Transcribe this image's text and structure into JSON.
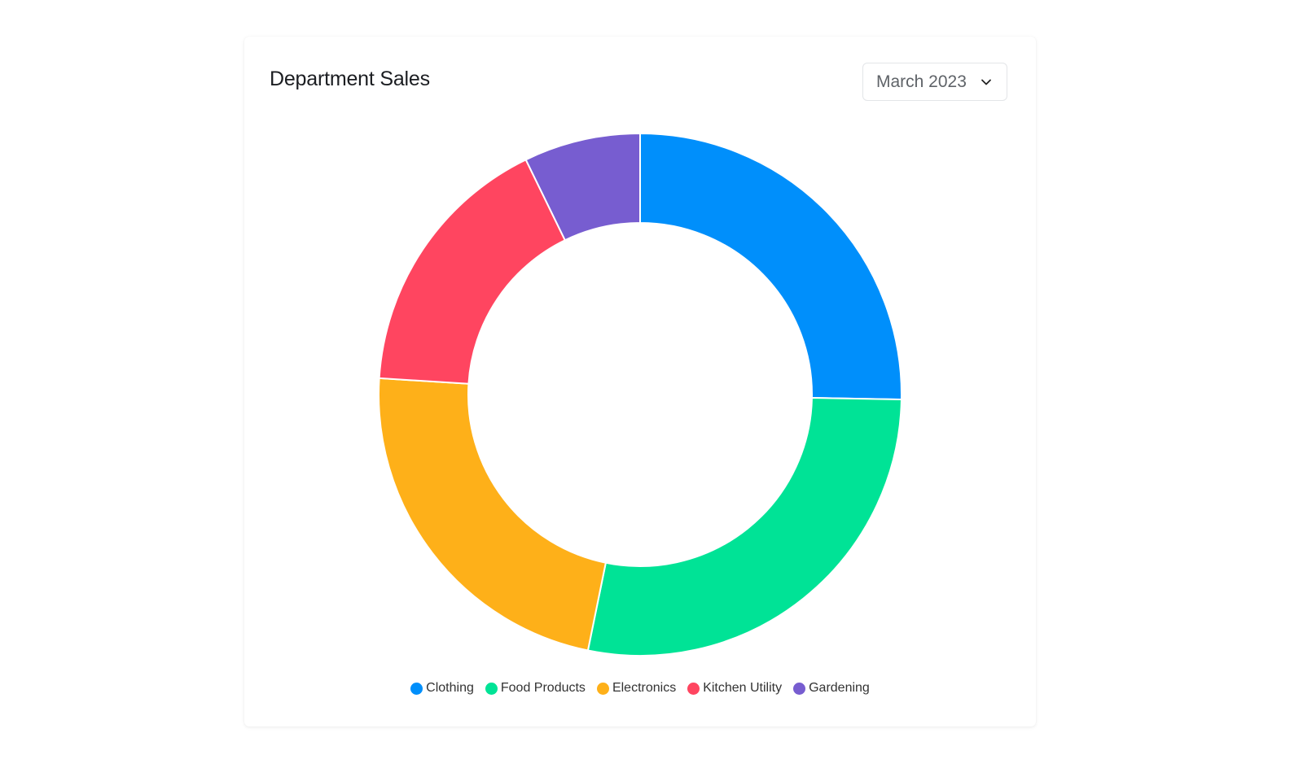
{
  "card": {
    "title": "Department Sales",
    "period_select": {
      "selected": "March 2023",
      "icon": "chevron-down-icon"
    }
  },
  "chart_data": {
    "type": "pie",
    "subtype": "donut",
    "title": "Department Sales",
    "categories": [
      "Clothing",
      "Food Products",
      "Electronics",
      "Kitchen Utility",
      "Gardening"
    ],
    "values": [
      25.3,
      27.9,
      22.8,
      16.8,
      7.2
    ],
    "unit": "percent (estimated from slice angles)",
    "colors": [
      "#008ffb",
      "#00e396",
      "#feb019",
      "#ff4560",
      "#775dd0"
    ],
    "legend_position": "bottom",
    "start_angle": 0
  },
  "legend": {
    "items": [
      {
        "label": "Clothing",
        "color": "#008ffb"
      },
      {
        "label": "Food Products",
        "color": "#00e396"
      },
      {
        "label": "Electronics",
        "color": "#feb019"
      },
      {
        "label": "Kitchen Utility",
        "color": "#ff4560"
      },
      {
        "label": "Gardening",
        "color": "#775dd0"
      }
    ]
  }
}
